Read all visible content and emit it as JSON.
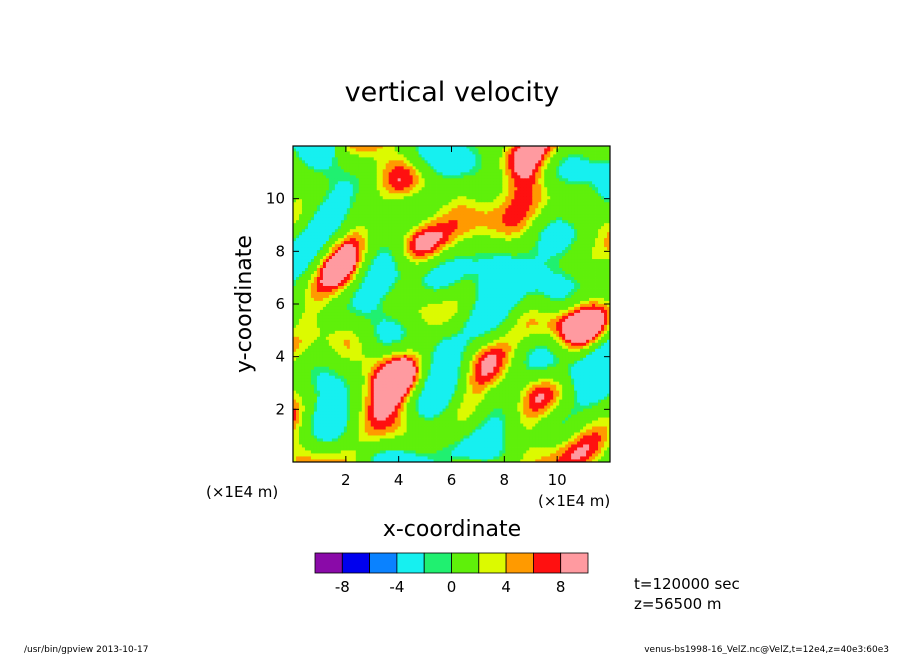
{
  "chart_data": {
    "type": "heatmap",
    "title": "vertical velocity",
    "xlabel": "x-coordinate",
    "ylabel": "y-coordinate",
    "x_scale_note": "(×1E4 m)",
    "y_scale_note": "(×1E4 m)",
    "xlim": [
      0,
      12
    ],
    "ylim": [
      0,
      12
    ],
    "x_ticks": [
      2,
      4,
      6,
      8,
      10
    ],
    "y_ticks": [
      2,
      4,
      6,
      8,
      10
    ],
    "x_tick_labels": [
      "2",
      "4",
      "6",
      "8",
      "10"
    ],
    "y_tick_labels": [
      "2",
      "4",
      "6",
      "8",
      "10"
    ],
    "colorbar": {
      "levels": [
        -10,
        -8,
        -6,
        -4,
        -2,
        0,
        2,
        4,
        6,
        8,
        10
      ],
      "colors": [
        "#8a0aa8",
        "#0000ee",
        "#0a82ff",
        "#16f0f0",
        "#20f070",
        "#5ff00a",
        "#dcfa00",
        "#ff9a00",
        "#ff1010",
        "#ff9aa0"
      ],
      "tick_labels": [
        "-8",
        "-4",
        "0",
        "4",
        "8"
      ],
      "tick_values": [
        -8,
        -4,
        0,
        4,
        8
      ]
    },
    "annotations": {
      "time": "t=120000 sec",
      "height": "z=56500 m"
    }
  },
  "footer": {
    "left": "/usr/bin/gpview   2013-10-17",
    "right": "venus-bs1998-16_VelZ.nc@VelZ,t=12e4,z=40e3:60e3"
  }
}
